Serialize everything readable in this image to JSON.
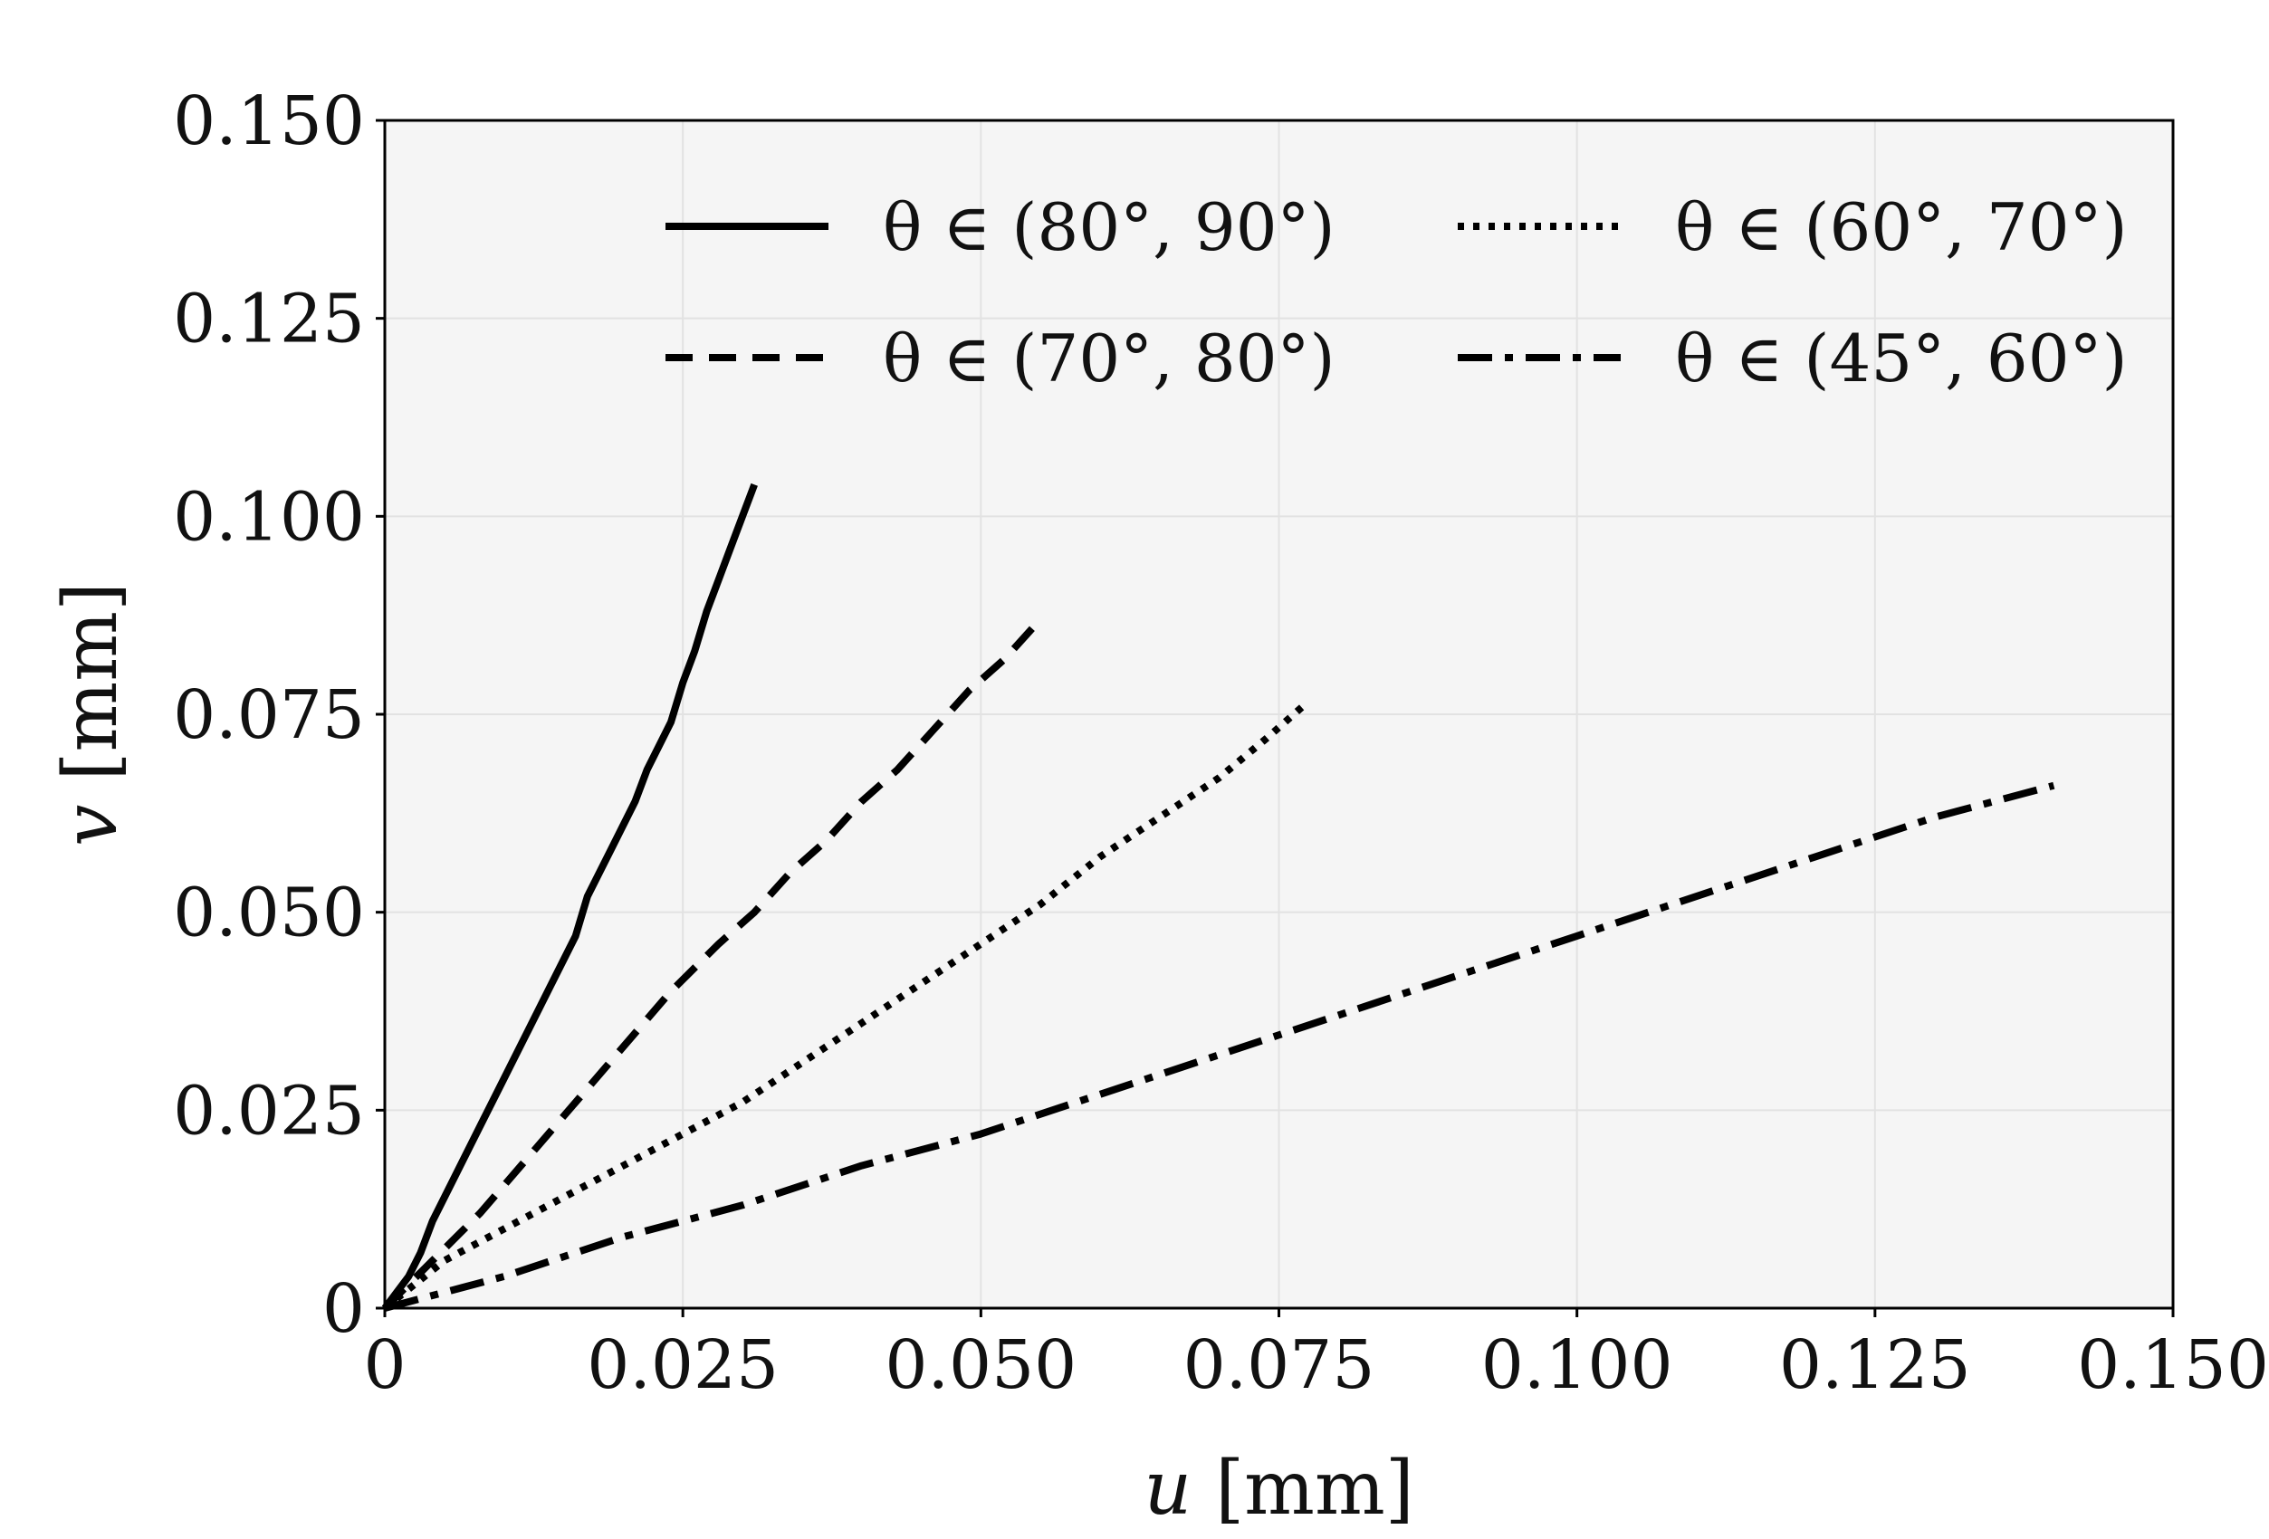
{
  "chart_data": {
    "type": "line",
    "title": "",
    "xlabel": "u [mm]",
    "xlabel_var": "u",
    "xlabel_unit": " [mm]",
    "ylabel": "v [mm]",
    "ylabel_var": "v",
    "ylabel_unit": " [mm]",
    "xlim": [
      0,
      0.15
    ],
    "ylim": [
      0,
      0.15
    ],
    "xticks": [
      0,
      0.025,
      0.05,
      0.075,
      0.1,
      0.125,
      0.15
    ],
    "xtick_labels": [
      "0",
      "0.025",
      "0.050",
      "0.075",
      "0.100",
      "0.125",
      "0.150"
    ],
    "yticks": [
      0,
      0.025,
      0.05,
      0.075,
      0.1,
      0.125,
      0.15
    ],
    "ytick_labels": [
      "0",
      "0.025",
      "0.050",
      "0.075",
      "0.100",
      "0.125",
      "0.150"
    ],
    "grid": true,
    "legend_position": "top-right",
    "legend_columns": 2,
    "colors": {
      "plot_background": "#f5f5f5",
      "grid": "#e2e2e2",
      "axes": "#000000",
      "series": "#000000"
    },
    "series": [
      {
        "name": "θ ∈ (80°, 90°)",
        "style": "solid",
        "x": [
          0,
          0.002,
          0.003,
          0.004,
          0.006,
          0.008,
          0.01,
          0.012,
          0.014,
          0.016,
          0.017,
          0.019,
          0.021,
          0.022,
          0.024,
          0.025,
          0.026,
          0.027,
          0.028,
          0.029,
          0.03,
          0.031
        ],
        "y": [
          0,
          0.004,
          0.007,
          0.011,
          0.017,
          0.023,
          0.029,
          0.035,
          0.041,
          0.047,
          0.052,
          0.058,
          0.064,
          0.068,
          0.074,
          0.079,
          0.083,
          0.088,
          0.092,
          0.096,
          0.1,
          0.104
        ]
      },
      {
        "name": "θ ∈ (70°, 80°)",
        "style": "dashed",
        "x": [
          0,
          0.004,
          0.008,
          0.012,
          0.016,
          0.02,
          0.024,
          0.028,
          0.031,
          0.034,
          0.037,
          0.04,
          0.043,
          0.046,
          0.049,
          0.052,
          0.055
        ],
        "y": [
          0,
          0.006,
          0.012,
          0.019,
          0.026,
          0.033,
          0.04,
          0.046,
          0.05,
          0.055,
          0.059,
          0.064,
          0.068,
          0.073,
          0.078,
          0.082,
          0.087
        ]
      },
      {
        "name": "θ ∈ (60°, 70°)",
        "style": "dotted",
        "x": [
          0,
          0.005,
          0.01,
          0.015,
          0.02,
          0.025,
          0.03,
          0.035,
          0.04,
          0.045,
          0.05,
          0.055,
          0.06,
          0.065,
          0.07,
          0.074,
          0.077
        ],
        "y": [
          0,
          0.006,
          0.01,
          0.014,
          0.018,
          0.022,
          0.026,
          0.031,
          0.036,
          0.041,
          0.046,
          0.051,
          0.057,
          0.062,
          0.067,
          0.072,
          0.076
        ]
      },
      {
        "name": "θ ∈ (45°, 60°)",
        "style": "dashdot",
        "x": [
          0,
          0.01,
          0.02,
          0.03,
          0.04,
          0.05,
          0.06,
          0.07,
          0.08,
          0.09,
          0.1,
          0.11,
          0.12,
          0.13,
          0.14
        ],
        "y": [
          0,
          0.004,
          0.009,
          0.013,
          0.018,
          0.022,
          0.027,
          0.032,
          0.037,
          0.042,
          0.047,
          0.052,
          0.057,
          0.062,
          0.066
        ]
      }
    ]
  }
}
